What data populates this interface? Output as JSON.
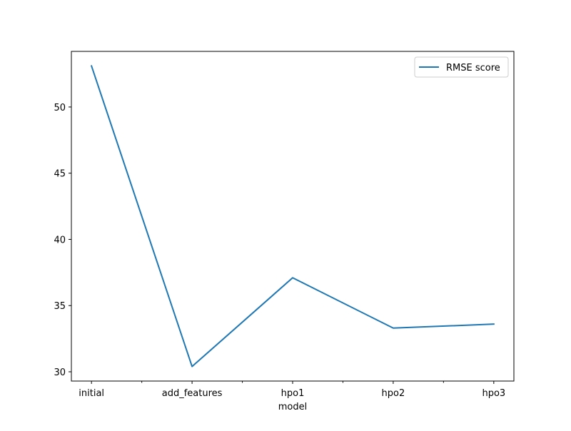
{
  "chart_data": {
    "type": "line",
    "categories": [
      "initial",
      "add_features",
      "hpo1",
      "hpo2",
      "hpo3"
    ],
    "series": [
      {
        "name": "RMSE score",
        "color": "#1f77b4",
        "values": [
          53.1,
          30.4,
          37.1,
          33.3,
          33.6
        ]
      }
    ],
    "title": "",
    "xlabel": "model",
    "ylabel": "",
    "ylim": [
      29.3,
      54.2
    ],
    "yticks": [
      30,
      35,
      40,
      45,
      50
    ],
    "minor_xticks": true,
    "grid": false,
    "legend_position": "upper right"
  }
}
